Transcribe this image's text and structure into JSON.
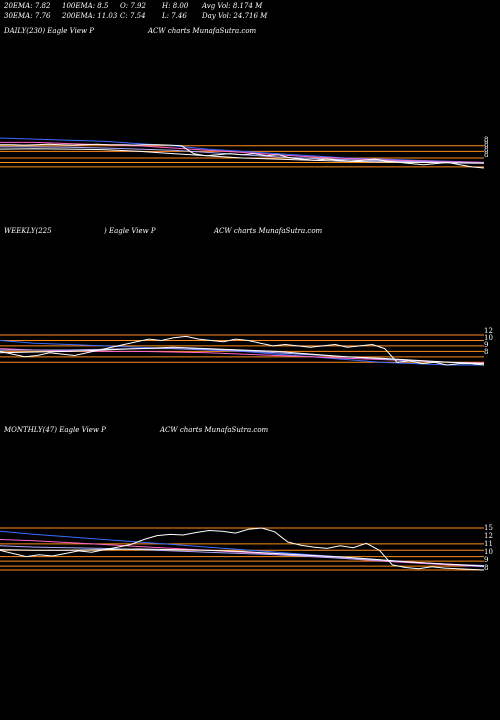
{
  "header": {
    "row1": [
      "20EMA: 7.82",
      "100EMA: 8.5",
      "O: 7.92",
      "H: 8.00",
      "Avg Vol: 8.174  M"
    ],
    "row2": [
      "30EMA: 7.76",
      "200EMA: 11.03",
      "C: 7.54",
      "L: 7.46",
      "Day Vol: 24.716  M"
    ]
  },
  "panels": [
    {
      "label": "DAILY(230) Eagle   View  P",
      "brand": "ACW charts MunafaSutra.com"
    },
    {
      "label": "WEEKLY(225",
      "mid": ") Eagle   View  P",
      "brand": "ACW charts MunafaSutra.com"
    },
    {
      "label": "MONTHLY(47) Eagle   View  P",
      "brand": "ACW charts MunafaSutra.com"
    }
  ],
  "chart_data": [
    {
      "type": "line",
      "name": "daily",
      "price": [
        8.6,
        8.6,
        8.58,
        8.6,
        8.62,
        8.6,
        8.58,
        8.6,
        8.62,
        8.6,
        8.6,
        8.58,
        8.6,
        8.6,
        8.58,
        8.55,
        8.2,
        8.1,
        8.15,
        8.2,
        8.15,
        8.2,
        8.1,
        8.15,
        8.0,
        7.95,
        7.9,
        7.95,
        7.9,
        7.85,
        7.9,
        7.95,
        7.85,
        7.8,
        7.75,
        7.7,
        7.75,
        7.8,
        7.7,
        7.6,
        7.55
      ],
      "ema_lines": [
        {
          "color": "#3a6cff",
          "values": [
            8.9,
            8.85,
            8.8,
            8.75,
            8.65,
            8.55,
            8.4,
            8.3,
            8.2,
            8.1,
            8.0,
            7.95,
            7.9,
            7.85,
            7.8
          ]
        },
        {
          "color": "#ff66cc",
          "values": [
            8.7,
            8.7,
            8.65,
            8.6,
            8.55,
            8.45,
            8.35,
            8.25,
            8.15,
            8.05,
            7.98,
            7.92,
            7.88,
            7.84,
            7.8
          ]
        },
        {
          "color": "#aaaaff",
          "values": [
            8.5,
            8.5,
            8.48,
            8.45,
            8.4,
            8.35,
            8.25,
            8.15,
            8.05,
            7.98,
            7.93,
            7.88,
            7.84,
            7.8,
            7.78
          ]
        },
        {
          "color": "#ffffff",
          "values": [
            8.4,
            8.42,
            8.4,
            8.38,
            8.3,
            8.2,
            8.1,
            8.0,
            7.95,
            7.9,
            7.85,
            7.82,
            7.8,
            7.78,
            7.76
          ]
        }
      ],
      "levels": [
        8.55,
        8.3,
        8.0,
        7.8,
        7.6
      ],
      "ticks": [
        "8",
        "8",
        "8",
        "8"
      ]
    },
    {
      "type": "line",
      "name": "weekly",
      "price": [
        9.4,
        9.2,
        9.0,
        9.1,
        9.3,
        9.2,
        9.1,
        9.3,
        9.5,
        9.7,
        9.9,
        10.1,
        10.3,
        10.2,
        10.4,
        10.5,
        10.3,
        10.2,
        10.1,
        10.3,
        10.2,
        10.0,
        9.8,
        9.9,
        9.8,
        9.7,
        9.8,
        9.9,
        9.7,
        9.8,
        9.9,
        9.6,
        8.6,
        8.7,
        8.5,
        8.6,
        8.4,
        8.5,
        8.5,
        8.4
      ],
      "ema_lines": [
        {
          "color": "#3a6cff",
          "values": [
            10.2,
            10.0,
            9.9,
            9.8,
            9.7,
            9.6,
            9.5,
            9.4,
            9.2,
            9.0,
            8.8,
            8.6,
            8.5,
            8.4,
            8.4
          ]
        },
        {
          "color": "#ff66cc",
          "values": [
            9.6,
            9.5,
            9.45,
            9.4,
            9.4,
            9.35,
            9.3,
            9.2,
            9.1,
            9.0,
            8.9,
            8.8,
            8.7,
            8.6,
            8.55
          ]
        },
        {
          "color": "#aaaaff",
          "values": [
            9.5,
            9.5,
            9.5,
            9.55,
            9.6,
            9.6,
            9.55,
            9.45,
            9.3,
            9.15,
            9.0,
            8.85,
            8.7,
            8.6,
            8.5
          ]
        },
        {
          "color": "#ffffff",
          "values": [
            9.3,
            9.35,
            9.4,
            9.5,
            9.6,
            9.7,
            9.6,
            9.5,
            9.4,
            9.2,
            9.0,
            8.9,
            8.75,
            8.6,
            8.5
          ]
        }
      ],
      "levels": [
        10.6,
        10.2,
        9.8,
        9.4,
        9.0,
        8.6
      ],
      "ticks": [
        "12",
        "10",
        "9",
        "8"
      ]
    },
    {
      "type": "line",
      "name": "monthly",
      "price": [
        11.5,
        11.0,
        10.5,
        10.8,
        10.6,
        11.0,
        11.4,
        11.2,
        11.6,
        12.0,
        12.4,
        13.2,
        13.8,
        14.0,
        13.9,
        14.3,
        14.6,
        14.5,
        14.2,
        14.8,
        15.0,
        14.4,
        12.8,
        12.3,
        12.0,
        11.8,
        12.2,
        11.9,
        12.6,
        11.5,
        9.2,
        8.8,
        8.6,
        8.9,
        8.7,
        8.6,
        8.5,
        8.4
      ],
      "ema_lines": [
        {
          "color": "#3a6cff",
          "values": [
            14.5,
            14.0,
            13.6,
            13.2,
            12.8,
            12.4,
            12.0,
            11.6,
            11.2,
            10.8,
            10.4,
            10.0,
            9.6,
            9.2,
            8.9
          ]
        },
        {
          "color": "#ff66cc",
          "values": [
            13.2,
            13.0,
            12.7,
            12.4,
            12.1,
            11.8,
            11.5,
            11.2,
            10.9,
            10.6,
            10.2,
            9.8,
            9.5,
            9.2,
            9.0
          ]
        },
        {
          "color": "#aaaaff",
          "values": [
            12.2,
            12.0,
            11.9,
            11.8,
            11.6,
            11.4,
            11.2,
            11.0,
            10.8,
            10.5,
            10.2,
            9.9,
            9.6,
            9.3,
            9.1
          ]
        },
        {
          "color": "#ffffff",
          "values": [
            11.6,
            11.5,
            11.5,
            11.6,
            11.7,
            11.6,
            11.5,
            11.3,
            11.0,
            10.7,
            10.4,
            10.0,
            9.6,
            9.3,
            9.0
          ]
        }
      ],
      "levels": [
        15.0,
        12.5,
        11.5,
        10.5,
        9.8,
        9.0,
        8.4
      ],
      "ticks": [
        "15",
        "12",
        "11",
        "10",
        "9",
        "8"
      ]
    }
  ]
}
